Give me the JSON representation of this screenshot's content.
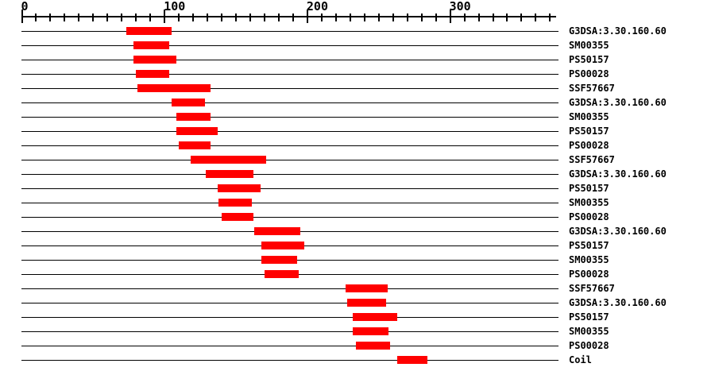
{
  "page": {
    "background": "#ffffff",
    "text_color": "#000000"
  },
  "chart_data": {
    "type": "bar",
    "subtype": "protein-sequence-feature-intervals",
    "orientation": "horizontal",
    "title": "",
    "xlabel": "",
    "ylabel": "",
    "legend": "none",
    "grid": "off",
    "bar_color": "#ff0000",
    "axis_color": "#000000",
    "x_axis": {
      "min": 0,
      "max": 375,
      "major_ticks": [
        0,
        100,
        200,
        300
      ],
      "major_tick_labels": [
        "0",
        "100",
        "200",
        "300"
      ],
      "minor_tick_interval": 10,
      "minor_tick_max": 370
    },
    "rows": [
      {
        "label": "G3DSA:3.30.160.60",
        "start": 73,
        "end": 105
      },
      {
        "label": "SM00355",
        "start": 78,
        "end": 103
      },
      {
        "label": "PS50157",
        "start": 78,
        "end": 108
      },
      {
        "label": "PS00028",
        "start": 80,
        "end": 103
      },
      {
        "label": "SSF57667",
        "start": 81,
        "end": 132
      },
      {
        "label": "G3DSA:3.30.160.60",
        "start": 105,
        "end": 128
      },
      {
        "label": "SM00355",
        "start": 108,
        "end": 132
      },
      {
        "label": "PS50157",
        "start": 108,
        "end": 137
      },
      {
        "label": "PS00028",
        "start": 110,
        "end": 132
      },
      {
        "label": "SSF57667",
        "start": 118,
        "end": 171
      },
      {
        "label": "G3DSA:3.30.160.60",
        "start": 129,
        "end": 162
      },
      {
        "label": "PS50157",
        "start": 137,
        "end": 167
      },
      {
        "label": "SM00355",
        "start": 138,
        "end": 161
      },
      {
        "label": "PS00028",
        "start": 140,
        "end": 162
      },
      {
        "label": "G3DSA:3.30.160.60",
        "start": 163,
        "end": 195
      },
      {
        "label": "PS50157",
        "start": 168,
        "end": 198
      },
      {
        "label": "SM00355",
        "start": 168,
        "end": 193
      },
      {
        "label": "PS00028",
        "start": 170,
        "end": 194
      },
      {
        "label": "SSF57667",
        "start": 227,
        "end": 256
      },
      {
        "label": "G3DSA:3.30.160.60",
        "start": 228,
        "end": 255
      },
      {
        "label": "PS50157",
        "start": 232,
        "end": 263
      },
      {
        "label": "SM00355",
        "start": 232,
        "end": 257
      },
      {
        "label": "PS00028",
        "start": 234,
        "end": 258
      },
      {
        "label": "Coil",
        "start": 263,
        "end": 284
      }
    ]
  }
}
